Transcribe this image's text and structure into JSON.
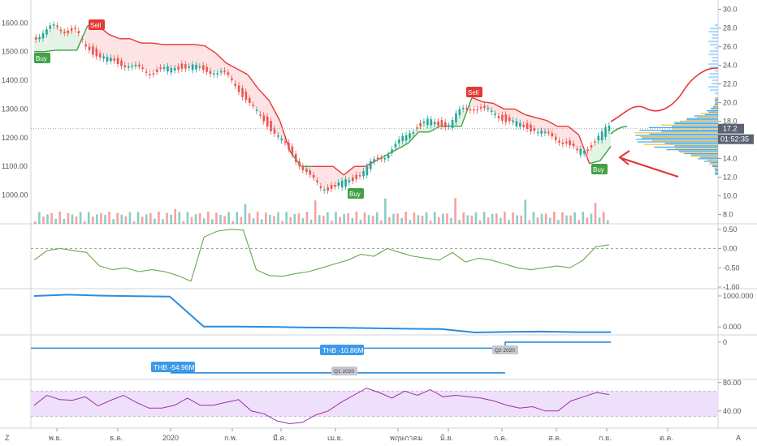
{
  "footer": {
    "left_glyph": "Z",
    "right_glyph": "A"
  },
  "price_panel": {
    "left_ticks": [
      "1600.00",
      "1500.00",
      "1400.00",
      "1300.00",
      "1200.00",
      "1100.00",
      "1000.00"
    ],
    "right_ticks": [
      "30.0",
      "28.0",
      "26.0",
      "24.0",
      "22.0",
      "20.0",
      "18.0",
      "16.0",
      "14.0",
      "12.0",
      "10.0",
      "8.0"
    ],
    "last_price_label": "17.2",
    "countdown_label": "01:52:35",
    "signals": [
      {
        "type": "Buy",
        "label": "Buy"
      },
      {
        "type": "Sell",
        "label": "Sell"
      },
      {
        "type": "Buy",
        "label": "Buy"
      },
      {
        "type": "Sell",
        "label": "Sell"
      },
      {
        "type": "Buy",
        "label": "Buy"
      }
    ],
    "arrow_color": "#e5302f"
  },
  "oscillator_panel": {
    "ticks": [
      "0.50",
      "0.00",
      "-0.50",
      "-1.00"
    ],
    "line_color": "#6aa84f"
  },
  "eps_panel": {
    "ticks": [
      "1000.000",
      "0.000"
    ],
    "line_color": "#2b8cdf"
  },
  "income_panel": {
    "ticks": [
      "0"
    ],
    "labels": [
      "THB -54.96M",
      "THB -10.86M"
    ],
    "period_tags": [
      "Q1 2020",
      "Q2 2020"
    ],
    "line_color": "#2b8cdf"
  },
  "rsi_panel": {
    "ticks": [
      "80.00",
      "40.00"
    ],
    "line_color": "#9c2ea8",
    "band_color": "#eee0fb"
  },
  "x_axis": {
    "labels": [
      "พ.ย.",
      "ธ.ค.",
      "2020",
      "ก.พ.",
      "มี.ค.",
      "เม.ย.",
      "พฤษภาคม",
      "มิ.ย.",
      "ก.ค.",
      "ส.ค.",
      "ก.ย.",
      "ต.ค."
    ]
  },
  "colors": {
    "up": "#26a69a",
    "down": "#ef5350",
    "supertrend_up": "#43a047",
    "supertrend_down": "#e53935",
    "volume_profile_up": "#2196f3",
    "volume_profile_down": "#ffb300"
  },
  "chart_data": {
    "type": "candlestick",
    "title": "",
    "price_axis": {
      "range": [
        900,
        1680
      ],
      "ticks": [
        1000,
        1100,
        1200,
        1300,
        1400,
        1500,
        1600
      ]
    },
    "secondary_axis": {
      "range": [
        7,
        31
      ],
      "ticks": [
        8,
        10,
        12,
        14,
        16,
        18,
        20,
        22,
        24,
        26,
        28,
        30
      ]
    },
    "x_categories": [
      "พ.ย.",
      "ธ.ค.",
      "2020",
      "ก.พ.",
      "มี.ค.",
      "เม.ย.",
      "พฤษภาคม",
      "มิ.ย.",
      "ก.ค.",
      "ส.ค.",
      "ก.ย.",
      "ต.ค."
    ],
    "close_series": [
      1550,
      1560,
      1590,
      1575,
      1570,
      1520,
      1490,
      1470,
      1465,
      1450,
      1440,
      1430,
      1435,
      1440,
      1450,
      1445,
      1440,
      1430,
      1420,
      1390,
      1330,
      1290,
      1250,
      1200,
      1160,
      1110,
      1060,
      1030,
      1025,
      1040,
      1060,
      1080,
      1120,
      1140,
      1170,
      1210,
      1240,
      1255,
      1250,
      1245,
      1290,
      1310,
      1300,
      1290,
      1270,
      1250,
      1240,
      1230,
      1210,
      1200,
      1180,
      1150,
      1165,
      1200,
      1240
    ],
    "supertrend_series": [
      1500,
      1500,
      1505,
      1505,
      1505,
      1590,
      1590,
      1560,
      1545,
      1545,
      1530,
      1530,
      1525,
      1525,
      1525,
      1525,
      1520,
      1495,
      1460,
      1440,
      1420,
      1370,
      1330,
      1260,
      1150,
      1100,
      1100,
      1100,
      1100,
      1070,
      1100,
      1100,
      1120,
      1140,
      1160,
      1180,
      1220,
      1220,
      1240,
      1240,
      1240,
      1340,
      1325,
      1320,
      1300,
      1300,
      1280,
      1270,
      1260,
      1240,
      1240,
      1210,
      1110,
      1120,
      1170
    ],
    "oscillator": {
      "range": [
        -1.0,
        0.6
      ],
      "values": [
        -0.3,
        -0.05,
        0.0,
        -0.05,
        -0.1,
        -0.45,
        -0.55,
        -0.5,
        -0.6,
        -0.55,
        -0.6,
        -0.7,
        -0.85,
        0.3,
        0.45,
        0.5,
        0.48,
        -0.55,
        -0.7,
        -0.72,
        -0.65,
        -0.6,
        -0.5,
        -0.4,
        -0.3,
        -0.15,
        -0.2,
        0.0,
        -0.1,
        -0.2,
        -0.25,
        -0.3,
        -0.1,
        -0.35,
        -0.25,
        -0.3,
        -0.4,
        -0.5,
        -0.55,
        -0.5,
        -0.45,
        -0.5,
        -0.3,
        0.05,
        0.1
      ]
    },
    "eps": {
      "range": [
        -180,
        1130
      ],
      "values": [
        1000,
        1040,
        1010,
        990,
        980,
        10,
        10,
        0,
        -20,
        -25,
        -40,
        -60,
        -70,
        -180,
        -160,
        -150,
        -170,
        -170
      ]
    },
    "income": {
      "range": [
        -64,
        10
      ],
      "values": [
        -54.96,
        -54.96,
        -54.96,
        -10.86,
        -10.86,
        -10.86,
        0,
        0,
        0
      ]
    },
    "rsi": {
      "range": [
        18,
        82
      ],
      "band": [
        32,
        68
      ],
      "values": [
        48,
        62,
        56,
        55,
        60,
        47,
        55,
        62,
        52,
        44,
        44,
        48,
        58,
        48,
        48,
        52,
        56,
        40,
        36,
        26,
        22,
        24,
        34,
        40,
        52,
        62,
        72,
        66,
        58,
        68,
        62,
        70,
        60,
        62,
        60,
        58,
        54,
        48,
        44,
        46,
        40,
        40,
        54,
        60,
        66,
        63
      ]
    }
  }
}
